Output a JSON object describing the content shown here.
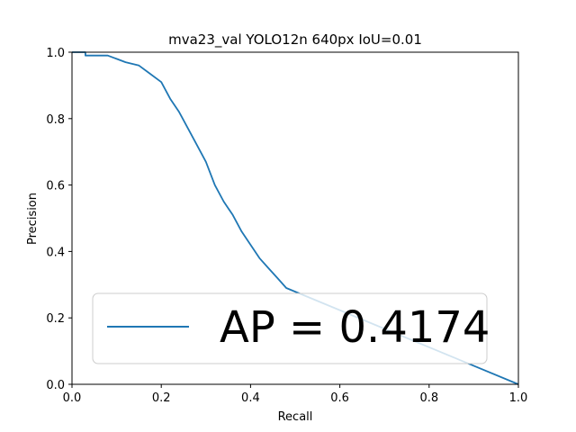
{
  "chart_data": {
    "type": "line",
    "title": "mva23_val YOLO12n 640px IoU=0.01",
    "xlabel": "Recall",
    "ylabel": "Precision",
    "xlim": [
      0,
      1
    ],
    "ylim": [
      0,
      1
    ],
    "xticks": [
      "0.0",
      "0.2",
      "0.4",
      "0.6",
      "0.8",
      "1.0"
    ],
    "yticks": [
      "0.0",
      "0.2",
      "0.4",
      "0.6",
      "0.8",
      "1.0"
    ],
    "grid": false,
    "legend": {
      "placement": "lower-left"
    },
    "series": [
      {
        "name": "AP = 0.4174",
        "color": "#1f77b4",
        "x": [
          0.0,
          0.03,
          0.03,
          0.05,
          0.08,
          0.1,
          0.12,
          0.15,
          0.17,
          0.2,
          0.22,
          0.24,
          0.26,
          0.28,
          0.3,
          0.32,
          0.34,
          0.36,
          0.38,
          0.4,
          0.42,
          0.44,
          0.46,
          0.48,
          1.0
        ],
        "y": [
          1.0,
          1.0,
          0.99,
          0.99,
          0.99,
          0.98,
          0.97,
          0.96,
          0.94,
          0.91,
          0.86,
          0.82,
          0.77,
          0.72,
          0.67,
          0.6,
          0.55,
          0.51,
          0.46,
          0.42,
          0.38,
          0.35,
          0.32,
          0.29,
          0.0
        ]
      }
    ]
  }
}
